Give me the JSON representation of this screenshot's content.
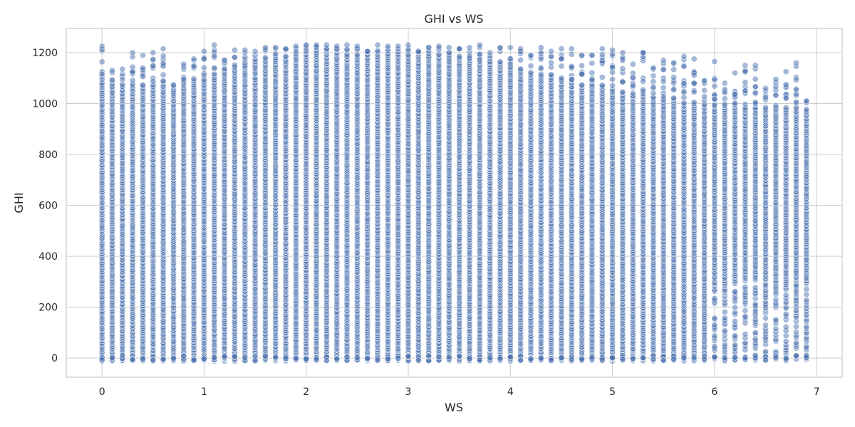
{
  "chart_data": {
    "type": "scatter",
    "title": "GHI vs WS",
    "xlabel": "WS",
    "ylabel": "GHI",
    "xlim": [
      -0.35,
      7.25
    ],
    "ylim": [
      -75,
      1295
    ],
    "xticks": [
      0,
      1,
      2,
      3,
      4,
      5,
      6,
      7
    ],
    "yticks": [
      0,
      200,
      400,
      600,
      800,
      1000,
      1200
    ],
    "grid": true,
    "legend": "none",
    "marker_color": "#4c72b0",
    "marker_edge_color": "#ffffff",
    "marker_alpha": 0.5,
    "x_step": 0.1,
    "ws_values": [
      0,
      0.1,
      0.2,
      0.3,
      0.4,
      0.5,
      0.6,
      0.7,
      0.8,
      0.9,
      1.0,
      1.1,
      1.2,
      1.3,
      1.4,
      1.5,
      1.6,
      1.7,
      1.8,
      1.9,
      2.0,
      2.1,
      2.2,
      2.3,
      2.4,
      2.5,
      2.6,
      2.7,
      2.8,
      2.9,
      3.0,
      3.1,
      3.2,
      3.3,
      3.4,
      3.5,
      3.6,
      3.7,
      3.8,
      3.9,
      4.0,
      4.1,
      4.2,
      4.3,
      4.4,
      4.5,
      4.6,
      4.7,
      4.8,
      4.9,
      5.0,
      5.1,
      5.2,
      5.3,
      5.4,
      5.5,
      5.6,
      5.7,
      5.8,
      5.9,
      6.0,
      6.1,
      6.2,
      6.3,
      6.4,
      6.5,
      6.6,
      6.7,
      6.8,
      6.9
    ],
    "ghi_min": -10,
    "ghi_max_by_ws": [
      1225,
      1130,
      1135,
      1200,
      1190,
      1200,
      1215,
      1075,
      1155,
      1175,
      1205,
      1230,
      1170,
      1210,
      1210,
      1205,
      1220,
      1220,
      1215,
      1225,
      1230,
      1230,
      1230,
      1225,
      1230,
      1225,
      1205,
      1230,
      1225,
      1225,
      1230,
      1205,
      1220,
      1225,
      1220,
      1215,
      1220,
      1230,
      1200,
      1220,
      1220,
      1215,
      1190,
      1220,
      1205,
      1215,
      1215,
      1190,
      1190,
      1215,
      1210,
      1200,
      1155,
      1200,
      1140,
      1170,
      1160,
      1185,
      1175,
      1090,
      1165,
      1080,
      1120,
      1150,
      1150,
      1060,
      1095,
      1125,
      1160,
      1010
    ],
    "dense_top_by_ws": [
      1080,
      1080,
      1080,
      1080,
      1080,
      1080,
      1080,
      1080,
      1090,
      1100,
      1100,
      1120,
      1140,
      1150,
      1160,
      1170,
      1180,
      1190,
      1190,
      1200,
      1210,
      1210,
      1210,
      1210,
      1200,
      1200,
      1200,
      1200,
      1200,
      1200,
      1200,
      1200,
      1200,
      1200,
      1190,
      1190,
      1180,
      1180,
      1170,
      1160,
      1150,
      1140,
      1130,
      1120,
      1110,
      1100,
      1090,
      1080,
      1080,
      1070,
      1060,
      1050,
      1040,
      1040,
      1030,
      1020,
      1020,
      1010,
      1010,
      1000,
      1000,
      1000,
      1000,
      990,
      990,
      990,
      990,
      990,
      990,
      980
    ],
    "sparse_low_from_ws": 6.0,
    "sparse_low_below": 300
  }
}
